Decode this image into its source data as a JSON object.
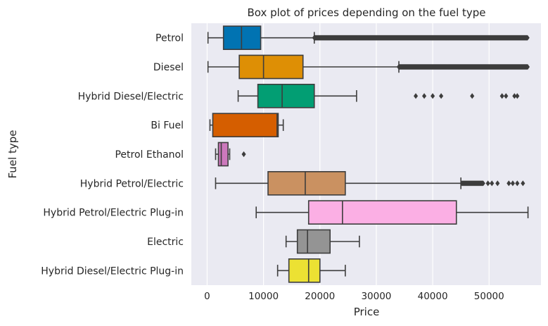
{
  "chart_data": {
    "type": "boxplot",
    "orientation": "horizontal",
    "title": "Box plot of prices depending on the fuel type",
    "xlabel": "Price",
    "ylabel": "Fuel type",
    "xlim": [
      -2800,
      59200
    ],
    "xticks": [
      0,
      10000,
      20000,
      30000,
      40000,
      50000
    ],
    "grid": true,
    "background": "#eaeaf2",
    "categories": [
      {
        "name": "Petrol",
        "color": "#0173b2",
        "whisker_low": 150,
        "q1": 2900,
        "median": 6100,
        "q3": 9500,
        "whisker_high": 19000,
        "outlier_range": [
          19000,
          56900
        ]
      },
      {
        "name": "Diesel",
        "color": "#de8f05",
        "whisker_low": 150,
        "q1": 5700,
        "median": 10000,
        "q3": 17000,
        "whisker_high": 34000,
        "outlier_range": [
          34000,
          56900
        ]
      },
      {
        "name": "Hybrid  Diesel/Electric",
        "color": "#029e73",
        "whisker_low": 5500,
        "q1": 9000,
        "median": 13300,
        "q3": 19000,
        "whisker_high": 26500,
        "outliers": [
          37000,
          38500,
          40000,
          41500,
          47000,
          52300,
          53000,
          54500,
          55000
        ]
      },
      {
        "name": "Bi Fuel",
        "color": "#d55e00",
        "whisker_low": 500,
        "q1": 1000,
        "median": 12400,
        "q3": 12600,
        "whisker_high": 13500,
        "outliers": []
      },
      {
        "name": "Petrol Ethanol",
        "color": "#cc78bc",
        "whisker_low": 1500,
        "q1": 2000,
        "median": 2500,
        "q3": 3700,
        "whisker_high": 4000,
        "outliers": [
          6500
        ]
      },
      {
        "name": "Hybrid  Petrol/Electric",
        "color": "#ca9161",
        "whisker_low": 1500,
        "q1": 10800,
        "median": 17400,
        "q3": 24500,
        "whisker_high": 45000,
        "outlier_range": [
          45200,
          49000
        ],
        "outliers": [
          49800,
          50500,
          51500,
          53500,
          54200,
          55000,
          56000
        ]
      },
      {
        "name": "Hybrid  Petrol/Electric Plug-in",
        "color": "#fbafe4",
        "whisker_low": 8700,
        "q1": 18000,
        "median": 24000,
        "q3": 44200,
        "whisker_high": 56900,
        "outliers": []
      },
      {
        "name": "Electric",
        "color": "#949494",
        "whisker_low": 14000,
        "q1": 16000,
        "median": 17800,
        "q3": 21800,
        "whisker_high": 27000,
        "outliers": []
      },
      {
        "name": "Hybrid  Diesel/Electric Plug-in",
        "color": "#ece133",
        "whisker_low": 12500,
        "q1": 14500,
        "median": 18000,
        "q3": 20000,
        "whisker_high": 24500,
        "outliers": []
      }
    ]
  }
}
